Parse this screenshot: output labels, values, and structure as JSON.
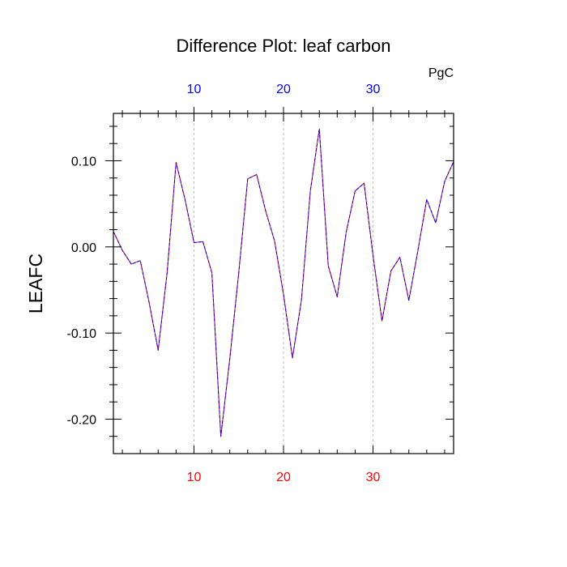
{
  "colors": {
    "bottom_axis_labels": "#ff0000",
    "top_axis_labels": "#0000ff",
    "line_primary": "#ff0000",
    "line_secondary": "#0000ff",
    "grid": "#bbbbbb",
    "axis": "#000000"
  },
  "chart_data": {
    "type": "line",
    "title": "Difference Plot: leaf carbon",
    "units": "PgC",
    "ylabel": "LEAFC",
    "xlabel": "",
    "xlim": [
      1,
      39
    ],
    "ylim": [
      -0.24,
      0.155
    ],
    "grid": "vertical dashed lines at 10, 20, 30",
    "line_style": "dashed",
    "x_ticks_major": [
      10,
      20,
      30
    ],
    "x_tick_labels": [
      "10",
      "20",
      "30"
    ],
    "x_ticks_minor": [
      2,
      4,
      6,
      8,
      12,
      14,
      16,
      18,
      22,
      24,
      26,
      28,
      32,
      34,
      36,
      38
    ],
    "y_ticks_major": [
      -0.2,
      -0.1,
      0.0,
      0.1
    ],
    "y_tick_labels": [
      "-0.20",
      "-0.10",
      "0.00",
      "0.10"
    ],
    "y_ticks_minor": [
      -0.22,
      -0.18,
      -0.16,
      -0.14,
      -0.12,
      -0.08,
      -0.06,
      -0.04,
      -0.02,
      0.02,
      0.04,
      0.06,
      0.08,
      0.12,
      0.14
    ],
    "series": [
      {
        "x": [
          1,
          2,
          3,
          4,
          5,
          6,
          7,
          8,
          9,
          10,
          11,
          12,
          13,
          14,
          15,
          16,
          17,
          18,
          19,
          20,
          21,
          22,
          23,
          24,
          25,
          26,
          27,
          28,
          29,
          30,
          31,
          32,
          33,
          34,
          35,
          36,
          37,
          38,
          39
        ],
        "values": [
          0.018,
          -0.004,
          -0.02,
          -0.016,
          -0.065,
          -0.12,
          -0.03,
          0.098,
          0.055,
          0.005,
          0.006,
          -0.03,
          -0.22,
          -0.13,
          -0.03,
          0.079,
          0.084,
          0.042,
          0.007,
          -0.055,
          -0.129,
          -0.062,
          0.065,
          0.137,
          -0.022,
          -0.058,
          0.017,
          0.065,
          0.074,
          -0.01,
          -0.086,
          -0.028,
          -0.012,
          -0.062,
          -0.005,
          0.055,
          0.028,
          0.076,
          0.099
        ]
      }
    ]
  }
}
